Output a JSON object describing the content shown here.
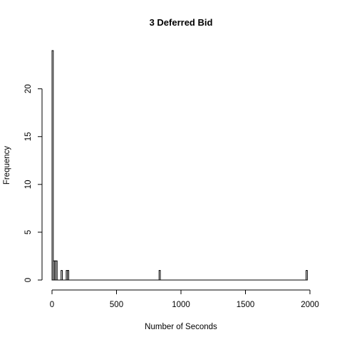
{
  "chart_data": {
    "type": "bar",
    "title": "3 Deferred Bid",
    "xlabel": "Number of Seconds",
    "ylabel": "Frequency",
    "xlim": [
      0,
      2000
    ],
    "ylim": [
      0,
      24
    ],
    "x_ticks": [
      0,
      500,
      1000,
      1500,
      2000
    ],
    "y_ticks": [
      0,
      5,
      10,
      15,
      20
    ],
    "bin_width": 10,
    "bins": [
      {
        "x0": 0,
        "x1": 10,
        "count": 24
      },
      {
        "x0": 10,
        "x1": 20,
        "count": 2
      },
      {
        "x0": 20,
        "x1": 30,
        "count": 2
      },
      {
        "x0": 30,
        "x1": 40,
        "count": 2
      },
      {
        "x0": 70,
        "x1": 80,
        "count": 1
      },
      {
        "x0": 110,
        "x1": 120,
        "count": 1
      },
      {
        "x0": 120,
        "x1": 130,
        "count": 1
      },
      {
        "x0": 830,
        "x1": 840,
        "count": 1
      },
      {
        "x0": 1970,
        "x1": 1980,
        "count": 1
      }
    ],
    "grid": false,
    "legend": "none"
  }
}
